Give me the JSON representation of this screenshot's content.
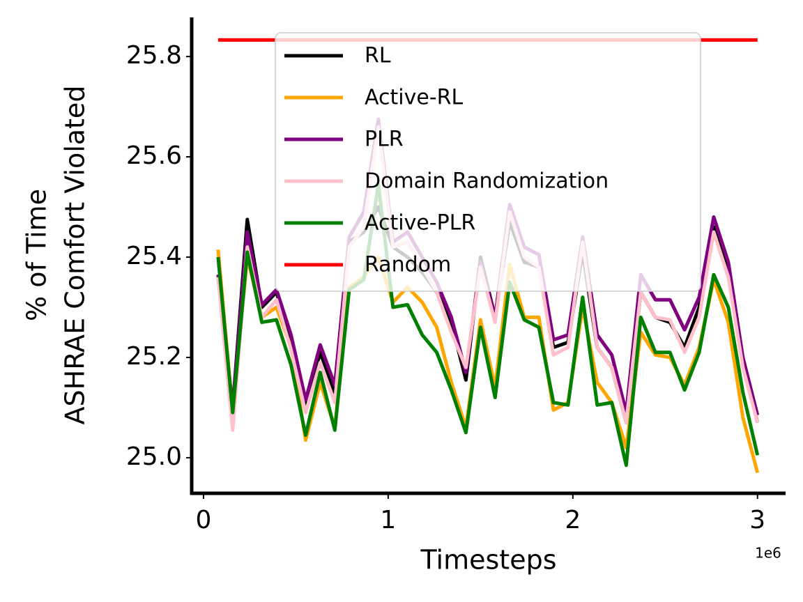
{
  "chart_data": {
    "type": "line",
    "xlabel": "Timesteps",
    "x_offset_label": "1e6",
    "ylabel": [
      "% of Time",
      "ASHRAE Comfort Violated"
    ],
    "x": [
      0.079,
      0.158,
      0.237,
      0.316,
      0.395,
      0.474,
      0.553,
      0.632,
      0.711,
      0.789,
      0.868,
      0.947,
      1.026,
      1.105,
      1.184,
      1.263,
      1.342,
      1.421,
      1.5,
      1.579,
      1.658,
      1.737,
      1.816,
      1.895,
      1.974,
      2.053,
      2.132,
      2.211,
      2.289,
      2.368,
      2.447,
      2.526,
      2.605,
      2.684,
      2.763,
      2.842,
      2.921,
      3.0
    ],
    "series": [
      {
        "name": "RL",
        "color": "#000000",
        "values": [
          25.36,
          25.1,
          25.475,
          25.3,
          25.33,
          25.23,
          25.1,
          25.21,
          25.13,
          25.43,
          25.45,
          25.5,
          25.42,
          25.4,
          25.37,
          25.33,
          25.27,
          25.155,
          25.4,
          25.28,
          25.47,
          25.39,
          25.38,
          25.22,
          25.23,
          25.41,
          25.22,
          25.18,
          25.07,
          25.33,
          25.28,
          25.27,
          25.22,
          25.3,
          25.46,
          25.37,
          25.19,
          25.07
        ]
      },
      {
        "name": "Active-RL",
        "color": "#ffa500",
        "values": [
          25.415,
          25.09,
          25.4,
          25.28,
          25.3,
          25.22,
          25.035,
          25.15,
          25.06,
          25.34,
          25.36,
          25.4,
          25.31,
          25.34,
          25.31,
          25.26,
          25.15,
          25.06,
          25.275,
          25.14,
          25.385,
          25.28,
          25.28,
          25.095,
          25.11,
          25.3,
          25.15,
          25.11,
          25.02,
          25.25,
          25.205,
          25.2,
          25.145,
          25.22,
          25.355,
          25.27,
          25.08,
          24.97
        ]
      },
      {
        "name": "PLR",
        "color": "#800080",
        "values": [
          25.365,
          25.1,
          25.45,
          25.305,
          25.335,
          25.245,
          25.115,
          25.225,
          25.145,
          25.44,
          25.49,
          25.675,
          25.43,
          25.45,
          25.4,
          25.35,
          25.28,
          25.17,
          25.39,
          25.28,
          25.505,
          25.42,
          25.405,
          25.235,
          25.245,
          25.44,
          25.245,
          25.205,
          25.09,
          25.365,
          25.315,
          25.315,
          25.255,
          25.32,
          25.48,
          25.39,
          25.2,
          25.085
        ]
      },
      {
        "name": "Domain Randomization",
        "color": "#ffc0cb",
        "values": [
          25.36,
          25.055,
          25.42,
          25.28,
          25.315,
          25.215,
          25.09,
          25.19,
          25.11,
          25.42,
          25.46,
          25.66,
          25.42,
          25.43,
          25.38,
          25.33,
          25.25,
          25.18,
          25.38,
          25.27,
          25.49,
          25.4,
          25.38,
          25.205,
          25.22,
          25.43,
          25.22,
          25.18,
          25.07,
          25.33,
          25.28,
          25.275,
          25.21,
          25.28,
          25.45,
          25.36,
          25.18,
          25.07
        ]
      },
      {
        "name": "Active-PLR",
        "color": "#008000",
        "values": [
          25.4,
          25.09,
          25.41,
          25.27,
          25.275,
          25.185,
          25.045,
          25.17,
          25.055,
          25.335,
          25.355,
          25.545,
          25.3,
          25.305,
          25.245,
          25.21,
          25.135,
          25.05,
          25.26,
          25.12,
          25.35,
          25.275,
          25.26,
          25.11,
          25.105,
          25.32,
          25.105,
          25.11,
          24.985,
          25.28,
          25.21,
          25.21,
          25.135,
          25.21,
          25.365,
          25.3,
          25.13,
          25.005
        ]
      },
      {
        "name": "Random",
        "color": "#ff0000",
        "values": [
          25.833,
          25.833,
          25.833,
          25.833,
          25.833,
          25.833,
          25.833,
          25.833,
          25.833,
          25.833,
          25.833,
          25.833,
          25.833,
          25.833,
          25.833,
          25.833,
          25.833,
          25.833,
          25.833,
          25.833,
          25.833,
          25.833,
          25.833,
          25.833,
          25.833,
          25.833,
          25.833,
          25.833,
          25.833,
          25.833,
          25.833,
          25.833,
          25.833,
          25.833,
          25.833,
          25.833,
          25.833,
          25.833
        ]
      }
    ],
    "xlim": [
      -0.064,
      3.152
    ],
    "ylim": [
      24.929,
      25.878
    ],
    "xticks": [
      0,
      1,
      2,
      3
    ],
    "yticks": [
      {
        "value": 25,
        "label": "25.0"
      },
      25.2,
      25.4,
      25.6,
      25.8
    ],
    "grid": false,
    "legend": "upper center"
  }
}
